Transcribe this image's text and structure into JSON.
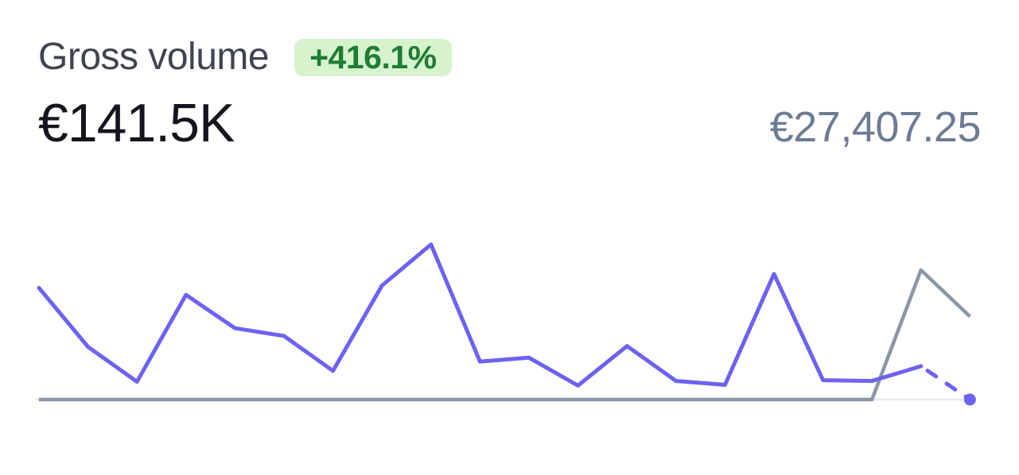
{
  "header": {
    "title": "Gross volume",
    "change_badge": "+416.1%",
    "primary_value": "€141.5K",
    "secondary_value": "€27,407.25"
  },
  "colors": {
    "accent_purple": "#6c63f2",
    "comparison_gray": "#8b96a6",
    "axis_line": "#e7eaf0",
    "badge_background": "#d6f3ce",
    "badge_text": "#1e7d32",
    "title_text": "#404452",
    "primary_value_text": "#14151e",
    "secondary_value_text": "#6d7c93"
  },
  "chart_data": {
    "type": "line",
    "title": "Gross volume",
    "currency": "EUR",
    "points": 20,
    "x_labels_visible": false,
    "ylim": [
      0,
      21000
    ],
    "grid": false,
    "legend": false,
    "baseline_value": 0,
    "axis_color": "#e7eaf0",
    "note": "No axis tick labels visible; point values estimated from line heights so each series sums to its displayed total.",
    "series": [
      {
        "name": "current-period",
        "total_label": "€141.5K",
        "color": "#6c63f2",
        "line_style": "solid",
        "tail": "dashed-projection",
        "end_marker": "dot",
        "values": [
          14400,
          6800,
          2300,
          13500,
          9200,
          8200,
          3700,
          14700,
          20000,
          4900,
          5400,
          1800,
          6900,
          2400,
          1900,
          16200,
          2500,
          2400,
          4300,
          0
        ]
      },
      {
        "name": "previous-period",
        "total_label": "€27,407.25",
        "color": "#8b96a6",
        "line_style": "solid",
        "values": [
          0,
          0,
          0,
          0,
          0,
          0,
          0,
          0,
          0,
          0,
          0,
          0,
          0,
          0,
          0,
          0,
          0,
          0,
          16700,
          10707.25
        ]
      }
    ]
  }
}
